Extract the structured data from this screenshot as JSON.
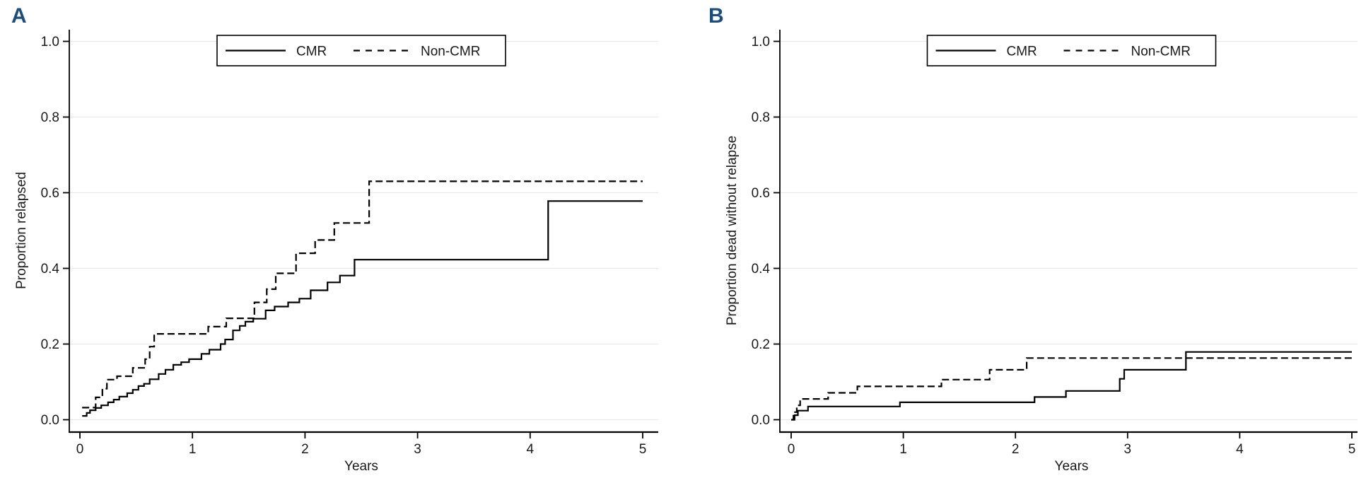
{
  "colors": {
    "curve": "#000000",
    "grid": "#e7e7e7",
    "axis": "#000000",
    "text": "#1a1a1a",
    "panel_label": "#1b4d7e",
    "legend_border": "#000000",
    "background": "#ffffff"
  },
  "chart_data": [
    {
      "type": "line",
      "step": true,
      "panel_label": "A",
      "title": "",
      "xlabel": "Years",
      "ylabel": "Proportion relapsed",
      "xlim": [
        0,
        5
      ],
      "ylim": [
        0,
        1
      ],
      "xticks": [
        0,
        1,
        2,
        3,
        4,
        5
      ],
      "xtick_labels": [
        "0",
        "1",
        "2",
        "3",
        "4",
        "5"
      ],
      "ytick_values": [
        0,
        0.2,
        0.4,
        0.6,
        0.8,
        1.0
      ],
      "ytick_labels": [
        "0.0",
        "0.2",
        "0.4",
        "0.6",
        "0.8",
        "1.0"
      ],
      "grid": "horizontal",
      "legend": {
        "position": "top-center",
        "entries": [
          {
            "label": "CMR",
            "line_style": "solid"
          },
          {
            "label": "Non-CMR",
            "line_style": "dashed"
          }
        ]
      },
      "series": [
        {
          "name": "CMR",
          "line_style": "solid",
          "color": "#000000",
          "points": [
            [
              0.02,
              0.01
            ],
            [
              0.06,
              0.018
            ],
            [
              0.09,
              0.025
            ],
            [
              0.14,
              0.031
            ],
            [
              0.19,
              0.038
            ],
            [
              0.25,
              0.046
            ],
            [
              0.3,
              0.053
            ],
            [
              0.35,
              0.061
            ],
            [
              0.42,
              0.07
            ],
            [
              0.47,
              0.079
            ],
            [
              0.52,
              0.089
            ],
            [
              0.57,
              0.095
            ],
            [
              0.62,
              0.107
            ],
            [
              0.7,
              0.121
            ],
            [
              0.76,
              0.132
            ],
            [
              0.83,
              0.145
            ],
            [
              0.9,
              0.152
            ],
            [
              0.97,
              0.16
            ],
            [
              1.08,
              0.174
            ],
            [
              1.15,
              0.185
            ],
            [
              1.25,
              0.2
            ],
            [
              1.29,
              0.212
            ],
            [
              1.36,
              0.236
            ],
            [
              1.42,
              0.248
            ],
            [
              1.47,
              0.259
            ],
            [
              1.54,
              0.267
            ],
            [
              1.65,
              0.289
            ],
            [
              1.73,
              0.299
            ],
            [
              1.85,
              0.31
            ],
            [
              1.95,
              0.32
            ],
            [
              2.05,
              0.342
            ],
            [
              2.2,
              0.363
            ],
            [
              2.31,
              0.381
            ],
            [
              2.44,
              0.423
            ],
            [
              4.16,
              0.578
            ],
            [
              5.0,
              0.578
            ]
          ]
        },
        {
          "name": "Non-CMR",
          "line_style": "dashed",
          "color": "#000000",
          "points": [
            [
              0.02,
              0.032
            ],
            [
              0.14,
              0.059
            ],
            [
              0.2,
              0.082
            ],
            [
              0.24,
              0.106
            ],
            [
              0.33,
              0.115
            ],
            [
              0.47,
              0.137
            ],
            [
              0.58,
              0.16
            ],
            [
              0.62,
              0.193
            ],
            [
              0.66,
              0.227
            ],
            [
              1.14,
              0.246
            ],
            [
              1.3,
              0.268
            ],
            [
              1.55,
              0.31
            ],
            [
              1.66,
              0.345
            ],
            [
              1.74,
              0.387
            ],
            [
              1.92,
              0.44
            ],
            [
              2.09,
              0.475
            ],
            [
              2.26,
              0.52
            ],
            [
              2.57,
              0.63
            ],
            [
              5.0,
              0.63
            ]
          ]
        }
      ]
    },
    {
      "type": "line",
      "step": true,
      "panel_label": "B",
      "title": "",
      "xlabel": "Years",
      "ylabel": "Proportion dead without relapse",
      "xlim": [
        0,
        5
      ],
      "ylim": [
        0,
        1
      ],
      "xticks": [
        0,
        1,
        2,
        3,
        4,
        5
      ],
      "xtick_labels": [
        "0",
        "1",
        "2",
        "3",
        "4",
        "5"
      ],
      "ytick_values": [
        0,
        0.2,
        0.4,
        0.6,
        0.8,
        1.0
      ],
      "ytick_labels": [
        "0.0",
        "0.2",
        "0.4",
        "0.6",
        "0.8",
        "1.0"
      ],
      "grid": "horizontal",
      "legend": {
        "position": "top-center",
        "entries": [
          {
            "label": "CMR",
            "line_style": "solid"
          },
          {
            "label": "Non-CMR",
            "line_style": "dashed"
          }
        ]
      },
      "series": [
        {
          "name": "CMR",
          "line_style": "solid",
          "color": "#000000",
          "points": [
            [
              0.0,
              0.0
            ],
            [
              0.03,
              0.012
            ],
            [
              0.06,
              0.024
            ],
            [
              0.15,
              0.035
            ],
            [
              0.97,
              0.046
            ],
            [
              2.17,
              0.06
            ],
            [
              2.45,
              0.076
            ],
            [
              2.93,
              0.108
            ],
            [
              2.97,
              0.132
            ],
            [
              3.52,
              0.179
            ],
            [
              5.0,
              0.179
            ]
          ]
        },
        {
          "name": "Non-CMR",
          "line_style": "dashed",
          "color": "#000000",
          "points": [
            [
              0.0,
              0.0
            ],
            [
              0.02,
              0.02
            ],
            [
              0.05,
              0.038
            ],
            [
              0.08,
              0.055
            ],
            [
              0.33,
              0.071
            ],
            [
              0.59,
              0.088
            ],
            [
              1.34,
              0.106
            ],
            [
              1.77,
              0.132
            ],
            [
              2.1,
              0.163
            ],
            [
              5.0,
              0.163
            ]
          ]
        }
      ]
    }
  ]
}
